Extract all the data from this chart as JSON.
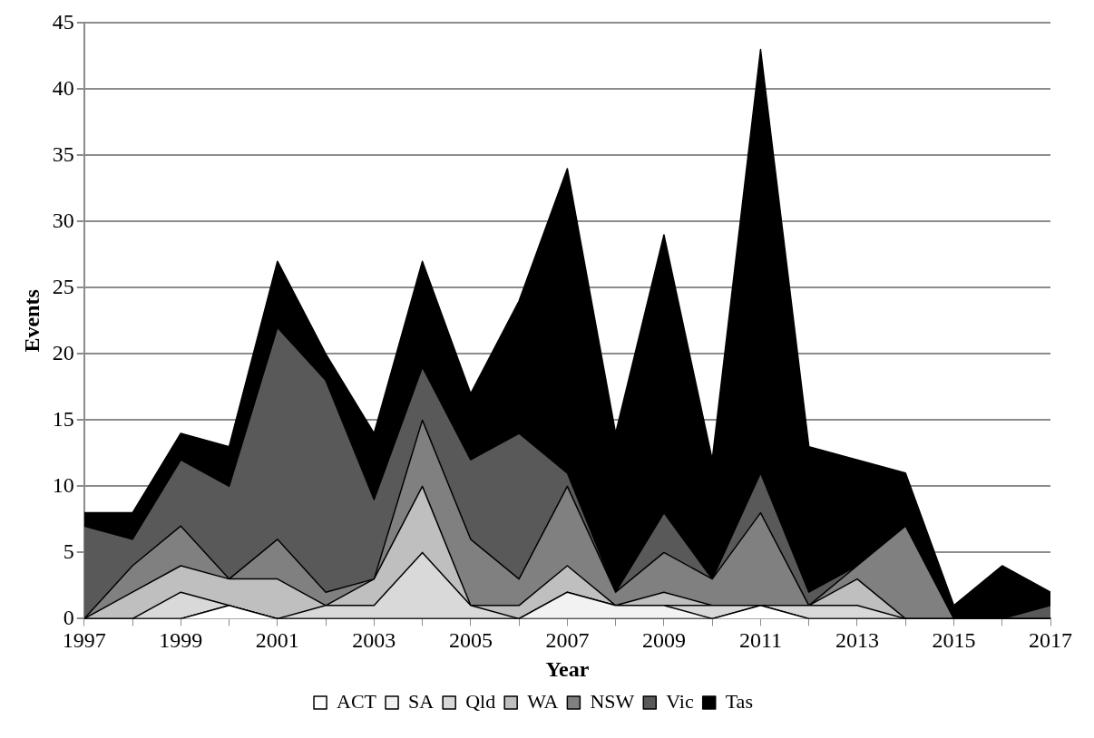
{
  "chart_data": {
    "type": "area",
    "stacked": true,
    "xlabel": "Year",
    "ylabel": "Events",
    "x": [
      1997,
      1998,
      1999,
      2000,
      2001,
      2002,
      2003,
      2004,
      2005,
      2006,
      2007,
      2008,
      2009,
      2010,
      2011,
      2012,
      2013,
      2014,
      2015,
      2016,
      2017
    ],
    "xlim": [
      1997,
      2017
    ],
    "xticks": [
      1997,
      {
        "value": 1998,
        "label": null
      },
      1999,
      {
        "value": 2000,
        "label": null
      },
      2001,
      {
        "value": 2002,
        "label": null
      },
      2003,
      {
        "value": 2004,
        "label": null
      },
      2005,
      {
        "value": 2006,
        "label": null
      },
      2007,
      {
        "value": 2008,
        "label": null
      },
      2009,
      {
        "value": 2010,
        "label": null
      },
      2011,
      {
        "value": 2012,
        "label": null
      },
      2013,
      {
        "value": 2014,
        "label": null
      },
      2015,
      {
        "value": 2016,
        "label": null
      },
      2017
    ],
    "ylim": [
      0,
      45
    ],
    "yticks": [
      0,
      5,
      10,
      15,
      20,
      25,
      30,
      35,
      40,
      45
    ],
    "grid": "y",
    "legend": "bottom",
    "series": [
      {
        "name": "ACT",
        "color": "#ffffff",
        "values": [
          0,
          0,
          0,
          1,
          0,
          0,
          0,
          0,
          0,
          0,
          0,
          0,
          0,
          0,
          1,
          0,
          0,
          0,
          0,
          0,
          0
        ]
      },
      {
        "name": "SA",
        "color": "#f2f2f2",
        "values": [
          0,
          0,
          0,
          0,
          0,
          0,
          0,
          0,
          0,
          0,
          2,
          1,
          1,
          0,
          0,
          0,
          0,
          0,
          0,
          0,
          0
        ]
      },
      {
        "name": "Qld",
        "color": "#d9d9d9",
        "values": [
          0,
          0,
          2,
          0,
          0,
          1,
          1,
          5,
          1,
          0,
          0,
          0,
          0,
          1,
          0,
          1,
          1,
          0,
          0,
          0,
          0
        ]
      },
      {
        "name": "WA",
        "color": "#bfbfbf",
        "values": [
          0,
          2,
          2,
          2,
          3,
          0,
          2,
          5,
          0,
          1,
          2,
          0,
          1,
          0,
          0,
          0,
          2,
          0,
          0,
          0,
          0
        ]
      },
      {
        "name": "NSW",
        "color": "#808080",
        "values": [
          0,
          2,
          3,
          0,
          3,
          1,
          0,
          5,
          5,
          2,
          6,
          1,
          3,
          2,
          7,
          0,
          1,
          7,
          0,
          0,
          0
        ]
      },
      {
        "name": "Vic",
        "color": "#595959",
        "values": [
          7,
          2,
          5,
          7,
          16,
          16,
          6,
          4,
          6,
          11,
          1,
          0,
          3,
          0,
          3,
          1,
          0,
          0,
          0,
          0,
          1
        ]
      },
      {
        "name": "Tas",
        "color": "#000000",
        "values": [
          1,
          2,
          2,
          3,
          5,
          2,
          5,
          8,
          5,
          10,
          23,
          12,
          21,
          9,
          32,
          11,
          8,
          4,
          1,
          4,
          1
        ]
      }
    ]
  }
}
